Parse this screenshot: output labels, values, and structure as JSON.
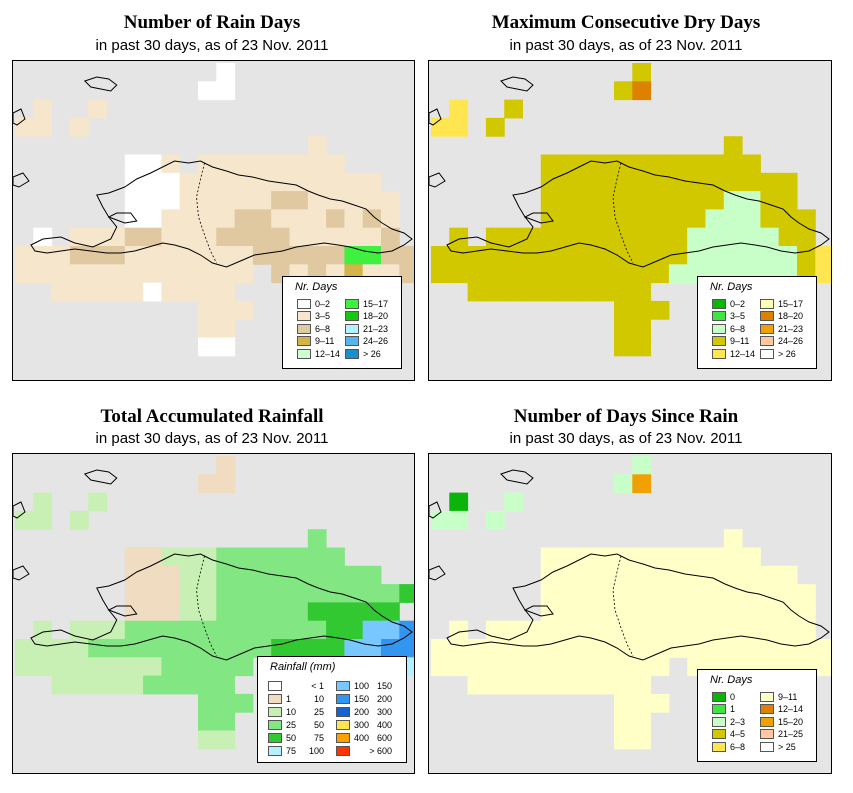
{
  "panels": [
    {
      "title": "Number of Rain Days",
      "subtitle": "in past 30 days, as of  23 Nov. 2011",
      "legend_title": "Nr. Days",
      "legend": [
        {
          "label": "0–2",
          "color": "#ffffff"
        },
        {
          "label": "3–5",
          "color": "#f5e6cc"
        },
        {
          "label": "6–8",
          "color": "#e0c8a0"
        },
        {
          "label": "9–11",
          "color": "#d4b44a"
        },
        {
          "label": "12–14",
          "color": "#d2ffd2"
        },
        {
          "label": "15–17",
          "color": "#40f040"
        },
        {
          "label": "18–20",
          "color": "#14c814"
        },
        {
          "label": "21–23",
          "color": "#b4f0ff"
        },
        {
          "label": "24–26",
          "color": "#5ab4f0"
        },
        {
          "label": "> 26",
          "color": "#1e8cd2"
        }
      ]
    },
    {
      "title": "Maximum Consecutive Dry Days",
      "subtitle": "in past 30 days, as of  23 Nov. 2011",
      "legend_title": "Nr. Days",
      "legend": [
        {
          "label": "0–2",
          "color": "#0ab40a"
        },
        {
          "label": "3–5",
          "color": "#40e640"
        },
        {
          "label": "6–8",
          "color": "#c8ffc8"
        },
        {
          "label": "9–11",
          "color": "#d2c800"
        },
        {
          "label": "12–14",
          "color": "#ffe650"
        },
        {
          "label": "15–17",
          "color": "#ffffb4"
        },
        {
          "label": "18–20",
          "color": "#dc8200"
        },
        {
          "label": "21–23",
          "color": "#f0a000"
        },
        {
          "label": "24–26",
          "color": "#ffc8a0"
        },
        {
          "label": "> 26",
          "color": "#ffffff"
        }
      ]
    },
    {
      "title": "Total Accumulated Rainfall",
      "subtitle": "in past 30 days, as of  23 Nov. 2011",
      "legend_title": "Rainfall (mm)",
      "legend": [
        {
          "lo": "",
          "hi": "< 1",
          "color": "#ffffff"
        },
        {
          "lo": "1",
          "hi": "10",
          "color": "#f0dcc0"
        },
        {
          "lo": "10",
          "hi": "25",
          "color": "#c8f0b4"
        },
        {
          "lo": "25",
          "hi": "50",
          "color": "#82e682"
        },
        {
          "lo": "50",
          "hi": "75",
          "color": "#32c832"
        },
        {
          "lo": "75",
          "hi": "100",
          "color": "#b4f0ff"
        },
        {
          "lo": "100",
          "hi": "150",
          "color": "#78c8ff"
        },
        {
          "lo": "150",
          "hi": "200",
          "color": "#3296f0"
        },
        {
          "lo": "200",
          "hi": "300",
          "color": "#1464d2"
        },
        {
          "lo": "300",
          "hi": "400",
          "color": "#ffe650"
        },
        {
          "lo": "400",
          "hi": "600",
          "color": "#ffa000"
        },
        {
          "lo": "",
          "hi": "> 600",
          "color": "#ff3200"
        }
      ]
    },
    {
      "title": "Number of Days Since Rain",
      "subtitle": "in past 30 days, as of  23 Nov. 2011",
      "legend_title": "Nr. Days",
      "legend": [
        {
          "label": "0",
          "color": "#0ab40a"
        },
        {
          "label": "1",
          "color": "#40e640"
        },
        {
          "label": "2–3",
          "color": "#c8ffc8"
        },
        {
          "label": "4–5",
          "color": "#d2c800"
        },
        {
          "label": "6–8",
          "color": "#ffe650"
        },
        {
          "label": "9–11",
          "color": "#ffffc8"
        },
        {
          "label": "12–14",
          "color": "#dc8200"
        },
        {
          "label": "15–20",
          "color": "#f0a000"
        },
        {
          "label": "21–25",
          "color": "#ffc8a0"
        },
        {
          "label": "> 25",
          "color": "#ffffff"
        }
      ]
    }
  ],
  "grids": [
    [
      "...........0...........",
      "..........00...........",
      ".1..1...................",
      "11.1....................",
      "................1.......",
      "......001.11111111......",
      "......00011111111111....",
      "......000111112211111...",
      "......001111221112121...",
      ".0.111221112222111112...",
      "1112221111111222225522..",
      "1111111111111.212131123.",
      "..1111101111........1...",
      "..........111...........",
      "..........11............",
      "..........00............"
    ],
    [
      "...........D...........",
      "..........DF...........",
      ".E..D...................",
      "EE.D....................",
      "................D.......",
      "......DDDDDDDDDDDD......",
      "......DDDDDDDDDDDDDD....",
      "......DDDDDDDDDDCCDD....",
      "......DDDDDDDDDCCCDDD...",
      ".D.DDDDDDDDDDDCCCCCDD...",
      "DDDDDDDDDDDDDDCCCCCCDE..",
      "DDDDDDDDDDDDDCCCCCCCDEE.",
      "..DDDDDDDDDD........D...",
      "..........DDD...........",
      "..........DD............",
      "..........DD............"
    ],
    [
      "...........1...........",
      "..........11...........",
      ".2..2...................",
      "22.2....................",
      "................3.......",
      "......112223333333......",
      "......11122333333333....",
      "......1112233333333334..",
      "......111223333344444...",
      ".2.2223333333333344667..",
      "22223333333333444466776.",
      "2222222233333.333366655.",
      "..2222233333........4...",
      "..........333...........",
      "..........33............",
      "..........22............"
    ],
    [
      "...........C...........",
      "..........CE...........",
      ".A..C...................",
      "CC.C....................",
      "................F.......",
      "......FFFFFFFFFFFF......",
      "......FFFFFFFFFFFFFF....",
      "......FFFFFFFFFFFFFFF...",
      "......FFFFFFFFFFFFFFF...",
      ".F.FFFFFFFFFFFFFFFFFF...",
      "FFFFFFFFFFFFFFFFFFFFFF..",
      "FFFFFFFFFFFFF.FFFFFFFFF.",
      "..FFFFFFFFFF........F...",
      "..........FFF...........",
      "..........FF............",
      "..........FF............"
    ]
  ],
  "palettes": [
    {
      "0": "#ffffff",
      "1": "#f5e6cc",
      "2": "#e0c8a0",
      "3": "#d4b44a",
      "4": "#d2ffd2",
      "5": "#40f040"
    },
    {
      "A": "#0ab40a",
      "B": "#40e640",
      "C": "#c8ffc8",
      "D": "#d2c800",
      "E": "#ffe650",
      "F": "#dc8200"
    },
    {
      "1": "#f0dcc0",
      "2": "#c8f0b4",
      "3": "#82e682",
      "4": "#32c832",
      "5": "#b4f0ff",
      "6": "#78c8ff",
      "7": "#3296f0"
    },
    {
      "A": "#0ab40a",
      "C": "#c8ffc8",
      "D": "#d2c800",
      "E": "#f0a000",
      "F": "#ffffc8"
    }
  ]
}
